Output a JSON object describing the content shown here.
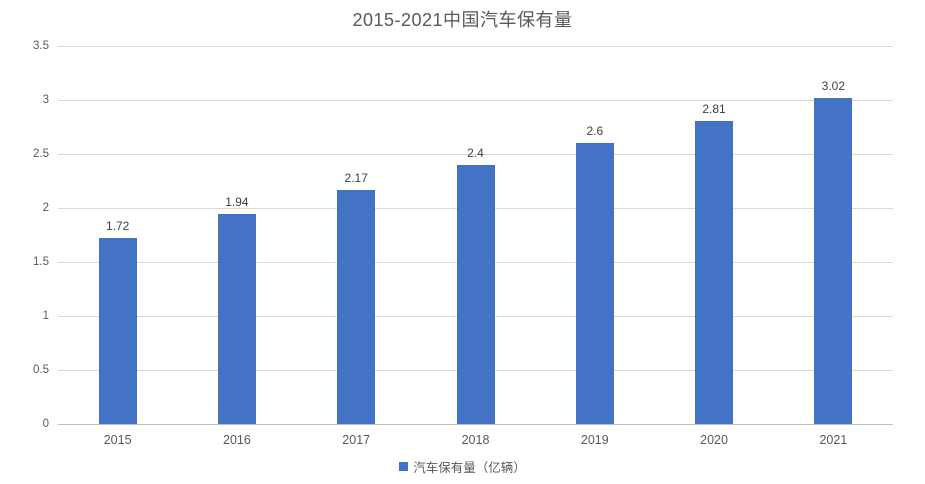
{
  "chart_data": {
    "type": "bar",
    "title": "2015-2021中国汽车保有量",
    "categories": [
      "2015",
      "2016",
      "2017",
      "2018",
      "2019",
      "2020",
      "2021"
    ],
    "values": [
      1.72,
      1.94,
      2.17,
      2.4,
      2.6,
      2.81,
      3.02
    ],
    "value_labels": [
      "1.72",
      "1.94",
      "2.17",
      "2.4",
      "2.6",
      "2.81",
      "3.02"
    ],
    "series_name": "汽车保有量（亿辆）",
    "xlabel": "",
    "ylabel": "",
    "ylim": [
      0,
      3.5
    ],
    "ytick_step": 0.5,
    "ytick_labels": [
      "0",
      "0.5",
      "1",
      "1.5",
      "2",
      "2.5",
      "3",
      "3.5"
    ],
    "grid": "horizontal",
    "legend_position": "bottom-center",
    "colors": {
      "bar": "#4472c4",
      "gridline": "#d9d9d9",
      "axis_line": "#bfbfbf",
      "title_text": "#595959",
      "axis_text": "#595959",
      "data_label_text": "#404040"
    }
  }
}
